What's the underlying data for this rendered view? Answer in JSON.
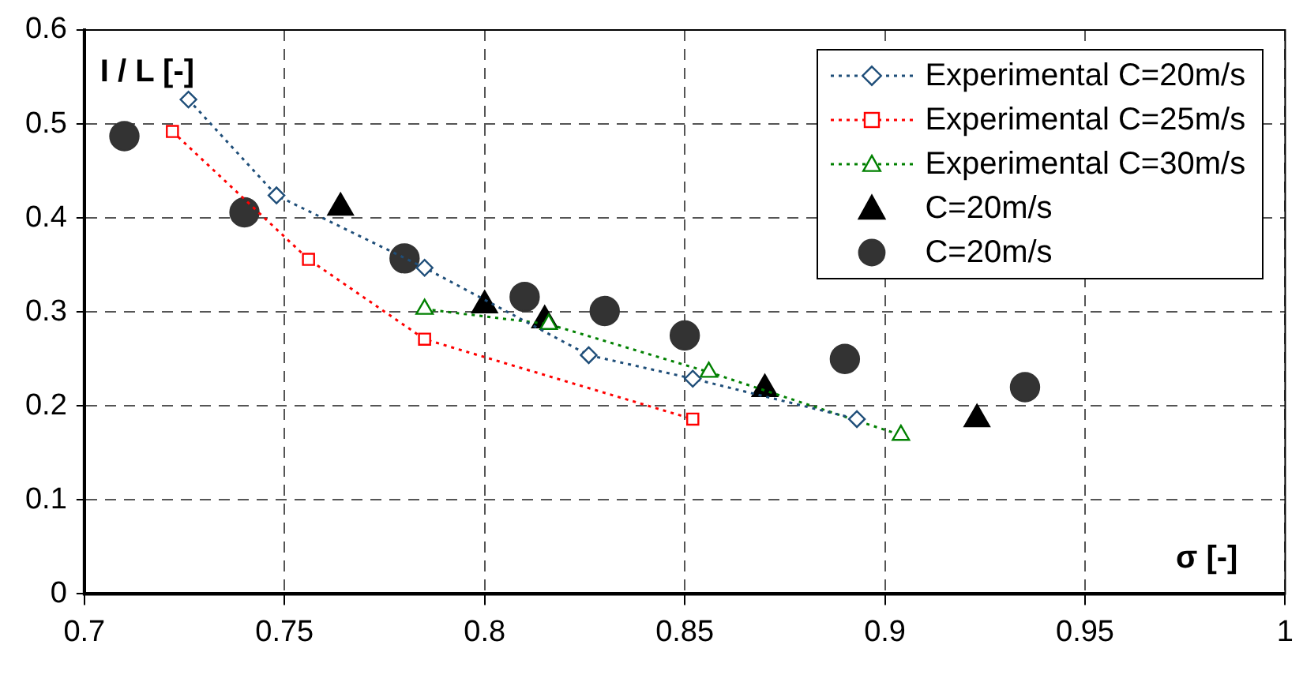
{
  "chart_data": {
    "type": "scatter",
    "xlabel": "σ [-]",
    "ylabel": "I / L [-]",
    "xlim": [
      0.7,
      1
    ],
    "xticks": [
      0.7,
      0.75,
      0.8,
      0.85,
      0.9,
      0.95,
      1
    ],
    "ylim": [
      0,
      0.6
    ],
    "yticks": [
      0,
      0.1,
      0.2,
      0.3,
      0.4,
      0.5,
      0.6
    ],
    "grid": true,
    "legend": "top right",
    "series": [
      {
        "name": "Experimental C=20m/s",
        "type": "line",
        "line_style": "dotted",
        "marker": "diamond",
        "color": "#1f4e79",
        "x": [
          0.726,
          0.748,
          0.785,
          0.826,
          0.852,
          0.893
        ],
        "values": [
          0.526,
          0.424,
          0.347,
          0.254,
          0.229,
          0.186
        ]
      },
      {
        "name": "Experimental C=25m/s",
        "type": "line",
        "line_style": "dotted",
        "marker": "square",
        "color": "#ff0000",
        "x": [
          0.722,
          0.756,
          0.785,
          0.852
        ],
        "values": [
          0.492,
          0.356,
          0.271,
          0.186
        ]
      },
      {
        "name": "Experimental C=30m/s",
        "type": "line",
        "line_style": "dotted",
        "marker": "triangle",
        "color": "#008000",
        "x": [
          0.785,
          0.816,
          0.856,
          0.904
        ],
        "values": [
          0.303,
          0.287,
          0.236,
          0.169
        ]
      },
      {
        "name": "C=20m/s",
        "type": "scatter",
        "marker": "triangle",
        "color": "#000000",
        "x": [
          0.764,
          0.8,
          0.815,
          0.87,
          0.923
        ],
        "values": [
          0.411,
          0.307,
          0.291,
          0.218,
          0.186
        ]
      },
      {
        "name": "C=20m/s",
        "type": "scatter",
        "marker": "circle",
        "color": "#333333",
        "x": [
          0.71,
          0.74,
          0.78,
          0.81,
          0.83,
          0.85,
          0.89,
          0.935
        ],
        "values": [
          0.487,
          0.406,
          0.357,
          0.316,
          0.301,
          0.275,
          0.25,
          0.22
        ]
      }
    ]
  }
}
